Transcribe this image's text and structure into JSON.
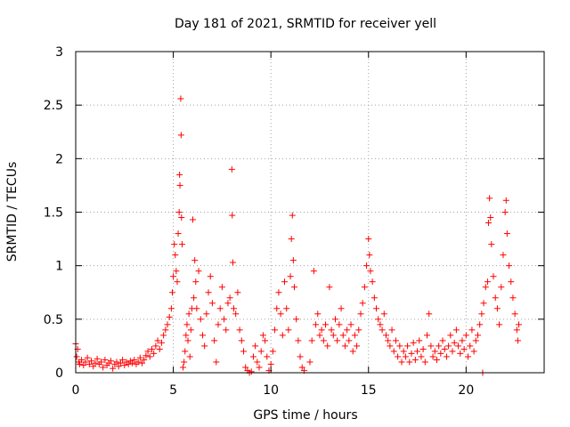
{
  "chart_data": {
    "type": "scatter",
    "title": "Day 181 of 2021, SRMTID for receiver yell",
    "xlabel": "GPS time / hours",
    "ylabel": "SRMTID / TECUs",
    "xlim": [
      0,
      24
    ],
    "ylim": [
      0,
      3
    ],
    "x_ticks": [
      0,
      5,
      10,
      15,
      20
    ],
    "x_tick_labels": [
      "0",
      "5",
      "10",
      "15",
      "20"
    ],
    "y_ticks": [
      0,
      0.5,
      1,
      1.5,
      2,
      2.5,
      3
    ],
    "y_tick_labels": [
      "0",
      "0.5",
      "1",
      "1.5",
      "2",
      "2.5",
      "3"
    ],
    "grid": true,
    "marker": "+",
    "series": [
      {
        "name": "SRMTID",
        "color": "#ff0000",
        "points": [
          [
            0.0,
            0.27
          ],
          [
            0.05,
            0.15
          ],
          [
            0.1,
            0.22
          ],
          [
            0.15,
            0.1
          ],
          [
            0.2,
            0.08
          ],
          [
            0.3,
            0.12
          ],
          [
            0.4,
            0.07
          ],
          [
            0.5,
            0.1
          ],
          [
            0.6,
            0.14
          ],
          [
            0.7,
            0.08
          ],
          [
            0.8,
            0.11
          ],
          [
            0.9,
            0.06
          ],
          [
            1.0,
            0.09
          ],
          [
            1.1,
            0.13
          ],
          [
            1.2,
            0.08
          ],
          [
            1.3,
            0.1
          ],
          [
            1.4,
            0.05
          ],
          [
            1.5,
            0.12
          ],
          [
            1.6,
            0.07
          ],
          [
            1.7,
            0.09
          ],
          [
            1.8,
            0.11
          ],
          [
            1.9,
            0.04
          ],
          [
            2.0,
            0.08
          ],
          [
            2.1,
            0.1
          ],
          [
            2.2,
            0.06
          ],
          [
            2.3,
            0.09
          ],
          [
            2.4,
            0.12
          ],
          [
            2.5,
            0.07
          ],
          [
            2.6,
            0.1
          ],
          [
            2.7,
            0.08
          ],
          [
            2.8,
            0.11
          ],
          [
            2.9,
            0.09
          ],
          [
            3.0,
            0.12
          ],
          [
            3.1,
            0.08
          ],
          [
            3.2,
            0.1
          ],
          [
            3.3,
            0.14
          ],
          [
            3.4,
            0.09
          ],
          [
            3.5,
            0.12
          ],
          [
            3.6,
            0.16
          ],
          [
            3.7,
            0.2
          ],
          [
            3.8,
            0.15
          ],
          [
            3.9,
            0.22
          ],
          [
            4.0,
            0.18
          ],
          [
            4.1,
            0.25
          ],
          [
            4.2,
            0.3
          ],
          [
            4.3,
            0.22
          ],
          [
            4.4,
            0.28
          ],
          [
            4.5,
            0.35
          ],
          [
            4.6,
            0.4
          ],
          [
            4.7,
            0.45
          ],
          [
            4.8,
            0.52
          ],
          [
            4.9,
            0.6
          ],
          [
            4.95,
            0.75
          ],
          [
            5.0,
            0.9
          ],
          [
            5.05,
            1.2
          ],
          [
            5.1,
            1.1
          ],
          [
            5.15,
            0.95
          ],
          [
            5.2,
            0.85
          ],
          [
            5.25,
            1.3
          ],
          [
            5.3,
            1.5
          ],
          [
            5.32,
            1.85
          ],
          [
            5.34,
            1.75
          ],
          [
            5.38,
            2.56
          ],
          [
            5.4,
            2.22
          ],
          [
            5.42,
            1.45
          ],
          [
            5.45,
            1.2
          ],
          [
            5.5,
            0.05
          ],
          [
            5.55,
            0.1
          ],
          [
            5.6,
            0.2
          ],
          [
            5.65,
            0.35
          ],
          [
            5.7,
            0.45
          ],
          [
            5.75,
            0.3
          ],
          [
            5.8,
            0.55
          ],
          [
            5.85,
            0.15
          ],
          [
            5.9,
            0.4
          ],
          [
            5.95,
            0.6
          ],
          [
            6.0,
            1.43
          ],
          [
            6.05,
            0.7
          ],
          [
            6.1,
            1.05
          ],
          [
            6.15,
            0.85
          ],
          [
            6.2,
            0.6
          ],
          [
            6.3,
            0.95
          ],
          [
            6.4,
            0.5
          ],
          [
            6.5,
            0.35
          ],
          [
            6.6,
            0.25
          ],
          [
            6.7,
            0.55
          ],
          [
            6.8,
            0.75
          ],
          [
            6.9,
            0.9
          ],
          [
            7.0,
            0.65
          ],
          [
            7.1,
            0.3
          ],
          [
            7.2,
            0.1
          ],
          [
            7.3,
            0.45
          ],
          [
            7.4,
            0.6
          ],
          [
            7.5,
            0.8
          ],
          [
            7.6,
            0.5
          ],
          [
            7.7,
            0.4
          ],
          [
            7.8,
            0.65
          ],
          [
            7.9,
            0.7
          ],
          [
            8.0,
            1.9
          ],
          [
            8.02,
            1.47
          ],
          [
            8.05,
            1.03
          ],
          [
            8.1,
            0.6
          ],
          [
            8.2,
            0.55
          ],
          [
            8.3,
            0.75
          ],
          [
            8.4,
            0.4
          ],
          [
            8.5,
            0.3
          ],
          [
            8.6,
            0.2
          ],
          [
            8.7,
            0.05
          ],
          [
            8.8,
            0.02
          ],
          [
            8.9,
            0.0
          ],
          [
            9.0,
            0.01
          ],
          [
            9.1,
            0.15
          ],
          [
            9.2,
            0.25
          ],
          [
            9.3,
            0.1
          ],
          [
            9.4,
            0.05
          ],
          [
            9.5,
            0.2
          ],
          [
            9.6,
            0.35
          ],
          [
            9.7,
            0.3
          ],
          [
            9.8,
            0.15
          ],
          [
            9.9,
            0.02
          ],
          [
            10.0,
            0.08
          ],
          [
            10.1,
            0.2
          ],
          [
            10.2,
            0.4
          ],
          [
            10.3,
            0.6
          ],
          [
            10.4,
            0.75
          ],
          [
            10.5,
            0.55
          ],
          [
            10.6,
            0.35
          ],
          [
            10.7,
            0.85
          ],
          [
            10.8,
            0.6
          ],
          [
            10.9,
            0.4
          ],
          [
            11.0,
            0.9
          ],
          [
            11.05,
            1.25
          ],
          [
            11.1,
            1.47
          ],
          [
            11.15,
            1.05
          ],
          [
            11.2,
            0.8
          ],
          [
            11.3,
            0.5
          ],
          [
            11.4,
            0.3
          ],
          [
            11.5,
            0.15
          ],
          [
            11.6,
            0.05
          ],
          [
            11.7,
            0.02
          ],
          [
            12.0,
            0.1
          ],
          [
            12.1,
            0.3
          ],
          [
            12.2,
            0.95
          ],
          [
            12.3,
            0.45
          ],
          [
            12.4,
            0.55
          ],
          [
            12.5,
            0.35
          ],
          [
            12.6,
            0.4
          ],
          [
            12.7,
            0.3
          ],
          [
            12.8,
            0.45
          ],
          [
            12.9,
            0.25
          ],
          [
            13.0,
            0.8
          ],
          [
            13.1,
            0.4
          ],
          [
            13.2,
            0.35
          ],
          [
            13.3,
            0.5
          ],
          [
            13.4,
            0.3
          ],
          [
            13.5,
            0.45
          ],
          [
            13.6,
            0.6
          ],
          [
            13.7,
            0.35
          ],
          [
            13.8,
            0.25
          ],
          [
            13.9,
            0.4
          ],
          [
            14.0,
            0.3
          ],
          [
            14.1,
            0.45
          ],
          [
            14.2,
            0.2
          ],
          [
            14.3,
            0.35
          ],
          [
            14.4,
            0.25
          ],
          [
            14.5,
            0.4
          ],
          [
            14.6,
            0.55
          ],
          [
            14.7,
            0.65
          ],
          [
            14.8,
            0.8
          ],
          [
            14.9,
            1.0
          ],
          [
            15.0,
            1.25
          ],
          [
            15.05,
            1.1
          ],
          [
            15.1,
            0.95
          ],
          [
            15.2,
            0.85
          ],
          [
            15.3,
            0.7
          ],
          [
            15.4,
            0.6
          ],
          [
            15.5,
            0.5
          ],
          [
            15.6,
            0.45
          ],
          [
            15.7,
            0.4
          ],
          [
            15.8,
            0.55
          ],
          [
            15.9,
            0.35
          ],
          [
            16.0,
            0.3
          ],
          [
            16.1,
            0.25
          ],
          [
            16.2,
            0.4
          ],
          [
            16.3,
            0.2
          ],
          [
            16.4,
            0.3
          ],
          [
            16.5,
            0.15
          ],
          [
            16.6,
            0.25
          ],
          [
            16.7,
            0.1
          ],
          [
            16.8,
            0.2
          ],
          [
            16.9,
            0.15
          ],
          [
            17.0,
            0.25
          ],
          [
            17.1,
            0.1
          ],
          [
            17.2,
            0.18
          ],
          [
            17.3,
            0.28
          ],
          [
            17.4,
            0.12
          ],
          [
            17.5,
            0.2
          ],
          [
            17.6,
            0.3
          ],
          [
            17.7,
            0.15
          ],
          [
            17.8,
            0.22
          ],
          [
            17.9,
            0.1
          ],
          [
            18.0,
            0.35
          ],
          [
            18.1,
            0.55
          ],
          [
            18.2,
            0.25
          ],
          [
            18.3,
            0.15
          ],
          [
            18.4,
            0.2
          ],
          [
            18.5,
            0.12
          ],
          [
            18.6,
            0.25
          ],
          [
            18.7,
            0.18
          ],
          [
            18.8,
            0.3
          ],
          [
            18.9,
            0.22
          ],
          [
            19.0,
            0.15
          ],
          [
            19.1,
            0.25
          ],
          [
            19.2,
            0.35
          ],
          [
            19.3,
            0.2
          ],
          [
            19.4,
            0.28
          ],
          [
            19.5,
            0.4
          ],
          [
            19.6,
            0.25
          ],
          [
            19.7,
            0.18
          ],
          [
            19.8,
            0.3
          ],
          [
            19.9,
            0.22
          ],
          [
            20.0,
            0.35
          ],
          [
            20.1,
            0.15
          ],
          [
            20.2,
            0.25
          ],
          [
            20.3,
            0.4
          ],
          [
            20.4,
            0.2
          ],
          [
            20.5,
            0.3
          ],
          [
            20.6,
            0.35
          ],
          [
            20.7,
            0.45
          ],
          [
            20.8,
            0.55
          ],
          [
            20.85,
            0.0
          ],
          [
            20.9,
            0.65
          ],
          [
            21.0,
            0.8
          ],
          [
            21.1,
            0.85
          ],
          [
            21.15,
            1.4
          ],
          [
            21.2,
            1.63
          ],
          [
            21.25,
            1.45
          ],
          [
            21.3,
            1.2
          ],
          [
            21.4,
            0.9
          ],
          [
            21.5,
            0.7
          ],
          [
            21.6,
            0.6
          ],
          [
            21.7,
            0.45
          ],
          [
            21.8,
            0.8
          ],
          [
            21.9,
            1.1
          ],
          [
            22.0,
            1.5
          ],
          [
            22.05,
            1.61
          ],
          [
            22.1,
            1.3
          ],
          [
            22.2,
            1.0
          ],
          [
            22.3,
            0.85
          ],
          [
            22.4,
            0.7
          ],
          [
            22.5,
            0.55
          ],
          [
            22.6,
            0.4
          ],
          [
            22.65,
            0.3
          ],
          [
            22.7,
            0.45
          ]
        ]
      }
    ]
  }
}
